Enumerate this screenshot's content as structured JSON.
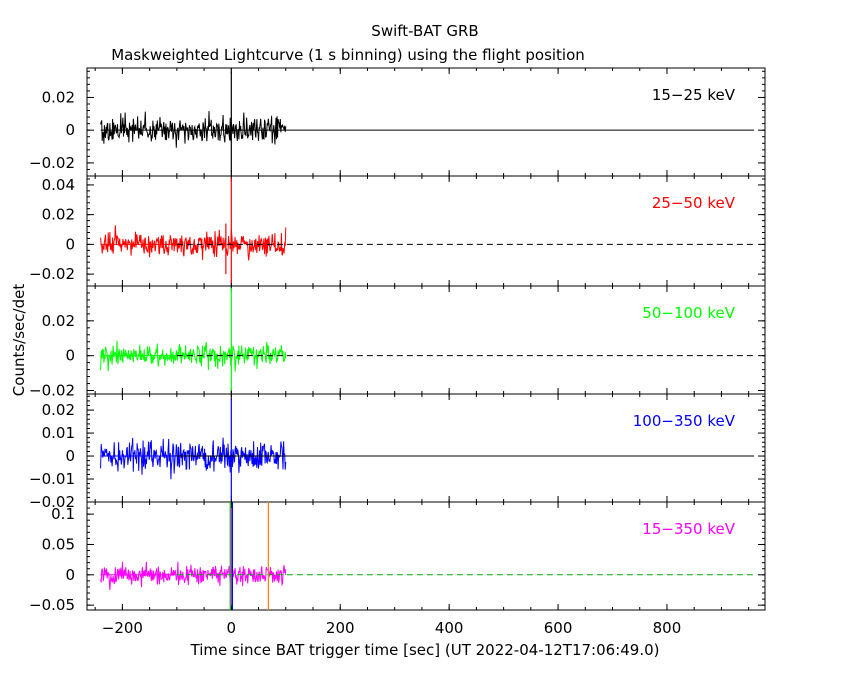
{
  "chart_data": {
    "type": "line",
    "title": "Swift-BAT GRB",
    "subtitle": "Maskweighted Lightcurve (1 s binning) using the flight position",
    "xlabel": "Time since BAT trigger time [sec] (UT 2022-04-12T17:06:49.0)",
    "ylabel": "Counts/sec/det",
    "xlim": [
      -265,
      980
    ],
    "x_ticks": [
      -200,
      0,
      200,
      400,
      600,
      800
    ],
    "x_tick_labels": [
      "−200",
      "0",
      "200",
      "400",
      "600",
      "800"
    ],
    "data_range": [
      -240,
      100
    ],
    "grid": false,
    "panels": [
      {
        "label": "15−25 keV",
        "color": "#000000",
        "ylim": [
          -0.028,
          0.038
        ],
        "y_ticks": [
          -0.02,
          0,
          0.02
        ],
        "y_tick_labels": [
          "−0.02",
          "0",
          "0.02"
        ],
        "noise_sigma": 0.007,
        "zero_line": "solid",
        "zero_color": "#000000",
        "peaks": [
          {
            "x": 0,
            "y": 0.036,
            "ymin": -0.026
          }
        ]
      },
      {
        "label": "25−50 keV",
        "color": "#ff0000",
        "ylim": [
          -0.028,
          0.046
        ],
        "y_ticks": [
          -0.02,
          0,
          0.02,
          0.04
        ],
        "y_tick_labels": [
          "−0.02",
          "0",
          "0.02",
          "0.04"
        ],
        "noise_sigma": 0.007,
        "zero_line": "dashed",
        "zero_color": "#000000",
        "peaks": [
          {
            "x": 0,
            "y": 0.045,
            "ymin": -0.026
          },
          {
            "x": -10,
            "y": 0.014,
            "ymin": -0.02
          }
        ]
      },
      {
        "label": "50−100 keV",
        "color": "#00ff00",
        "ylim": [
          -0.022,
          0.04
        ],
        "y_ticks": [
          -0.02,
          0,
          0.02
        ],
        "y_tick_labels": [
          "−0.02",
          "0",
          "0.02"
        ],
        "noise_sigma": 0.0055,
        "zero_line": "dashed",
        "zero_color": "#000000",
        "peaks": [
          {
            "x": 0,
            "y": 0.039,
            "ymin": -0.02
          }
        ]
      },
      {
        "label": "100−350 keV",
        "color": "#0000ff",
        "ylim": [
          -0.02,
          0.027
        ],
        "y_ticks": [
          -0.02,
          -0.01,
          0,
          0.01,
          0.02
        ],
        "y_tick_labels": [
          "−0.02",
          "−0.01",
          "0",
          "0.01",
          "0.02"
        ],
        "noise_sigma": 0.0055,
        "zero_line": "solid",
        "zero_color": "#000000",
        "peaks": [
          {
            "x": 0,
            "y": 0.025,
            "ymin": -0.019
          }
        ]
      },
      {
        "label": "15−350 keV",
        "color": "#ff00ff",
        "ylim": [
          -0.058,
          0.12
        ],
        "y_ticks": [
          -0.05,
          0,
          0.05,
          0.1
        ],
        "y_tick_labels": [
          "−0.05",
          "0",
          "0.05",
          "0.1"
        ],
        "noise_sigma": 0.014,
        "zero_line": "dashed",
        "zero_color": "#00aa00",
        "peaks": [
          {
            "x": 0,
            "y": 0.11,
            "ymin": -0.05
          }
        ],
        "markers": [
          {
            "x": -2,
            "color": "#00cc00",
            "style": "solid"
          },
          {
            "x": 2,
            "color": "#0000ff",
            "style": "solid"
          },
          {
            "x": 68,
            "color": "#ff8000",
            "style": "solid"
          }
        ]
      }
    ]
  }
}
